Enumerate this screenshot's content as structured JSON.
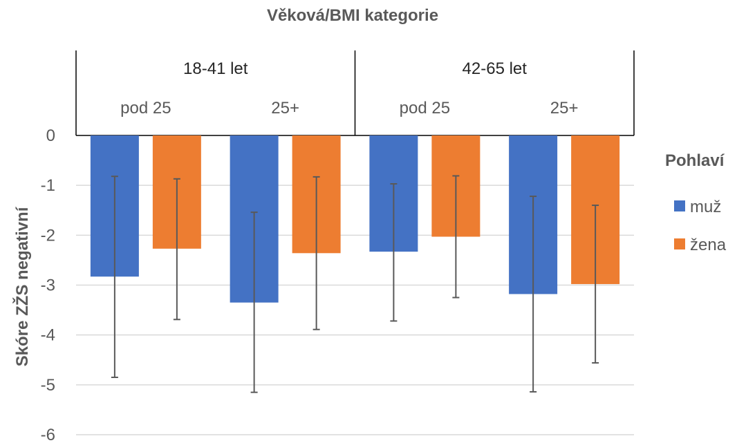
{
  "chart_data": {
    "type": "bar",
    "title": "Věková/BMI kategorie",
    "ylabel": "Skóre ZŽS negativní",
    "ylim": [
      -6,
      0
    ],
    "yticks": [
      "0",
      "-1",
      "-2",
      "-3",
      "-4",
      "-5",
      "-6"
    ],
    "groups": [
      {
        "label": "18-41 let",
        "subcategories": [
          "pod 25",
          "25+"
        ]
      },
      {
        "label": "42-65 let",
        "subcategories": [
          "pod 25",
          "25+"
        ]
      }
    ],
    "categories": [
      "18-41 let / pod 25",
      "18-41 let / 25+",
      "42-65 let / pod 25",
      "42-65 let / 25+"
    ],
    "legend": {
      "title": "Pohlaví",
      "position": "right"
    },
    "grid": true,
    "series": [
      {
        "name": "muž",
        "color": "#4472C4",
        "values": [
          -2.83,
          -3.35,
          -2.33,
          -3.18
        ],
        "error_low": [
          -4.85,
          -5.15,
          -3.72,
          -5.14
        ],
        "error_high": [
          -0.82,
          -1.54,
          -0.97,
          -1.22
        ]
      },
      {
        "name": "žena",
        "color": "#ED7D31",
        "values": [
          -2.27,
          -2.36,
          -2.03,
          -2.98
        ],
        "error_low": [
          -3.69,
          -3.89,
          -3.25,
          -4.56
        ],
        "error_high": [
          -0.87,
          -0.83,
          -0.81,
          -1.4
        ]
      }
    ]
  }
}
